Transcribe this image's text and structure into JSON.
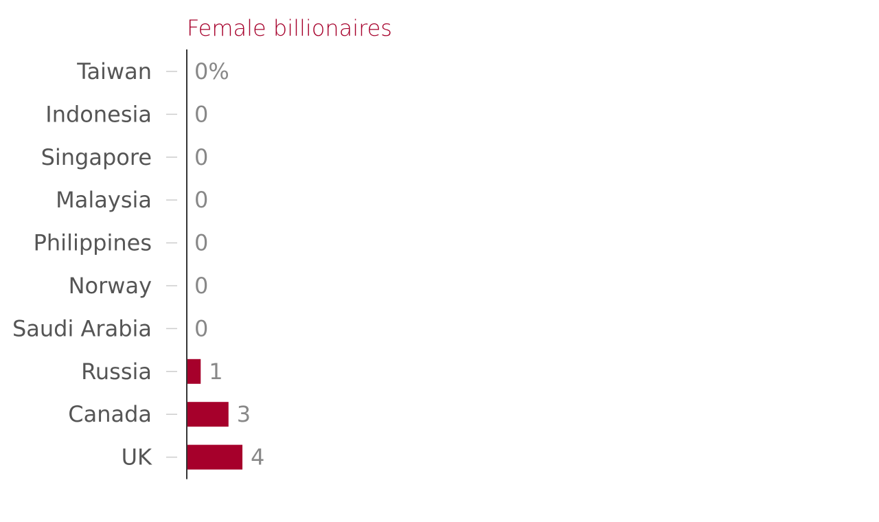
{
  "chart_data": {
    "type": "bar",
    "orientation": "horizontal",
    "title": "Female billionaires",
    "categories": [
      "Taiwan",
      "Indonesia",
      "Singapore",
      "Malaysia",
      "Philippines",
      "Norway",
      "Saudi Arabia",
      "Russia",
      "Canada",
      "UK"
    ],
    "values": [
      0,
      0,
      0,
      0,
      0,
      0,
      0,
      1,
      3,
      4
    ],
    "value_labels": [
      "0%",
      "0",
      "0",
      "0",
      "0",
      "0",
      "0",
      "1",
      "3",
      "4"
    ],
    "xlim": [
      0,
      30
    ],
    "grid": false,
    "colors": {
      "bar": "#a6002b",
      "title": "#a6002b",
      "axis": "#333333",
      "tick": "#cccccc"
    }
  }
}
